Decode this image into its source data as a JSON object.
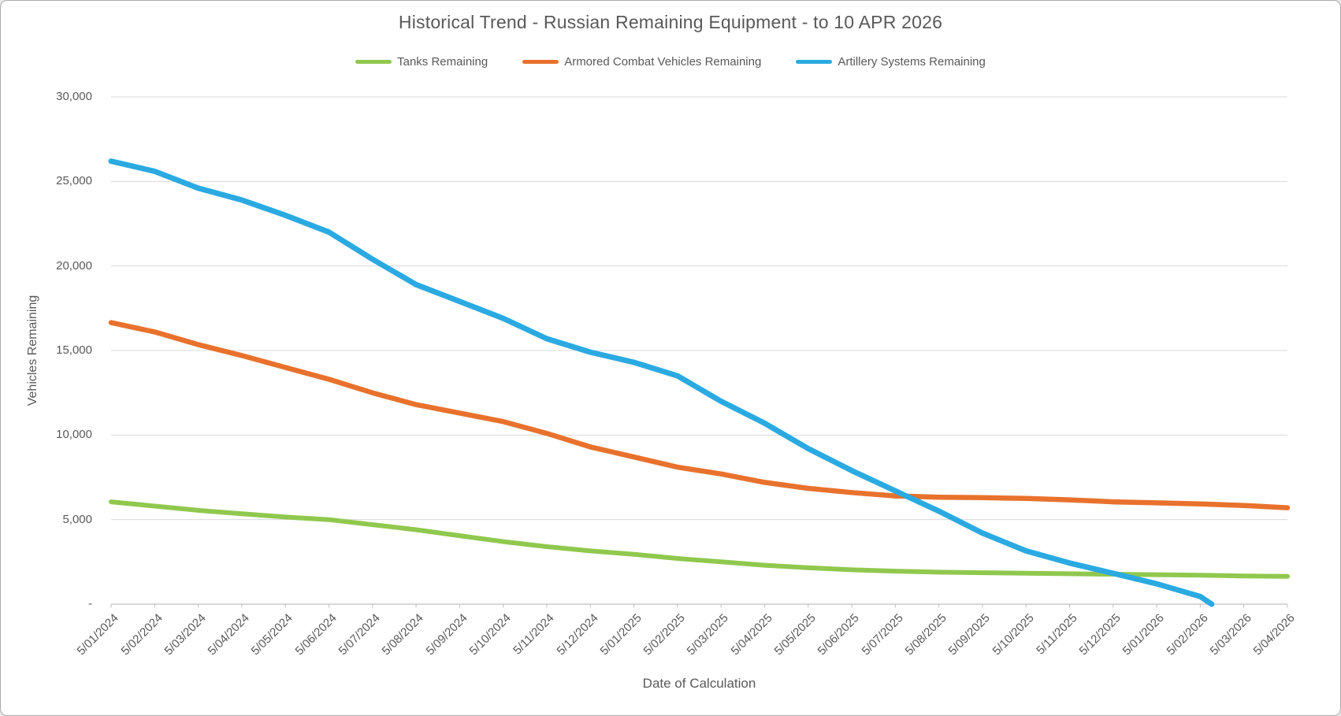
{
  "chart_data": {
    "type": "line",
    "title": "Historical Trend - Russian Remaining Equipment - to 10 APR 2026",
    "xlabel": "Date of Calculation",
    "ylabel": "Vehicles Remaining",
    "ylim": [
      0,
      30000
    ],
    "y_tick_step": 5000,
    "y_tick_labels": [
      "-",
      "5,000",
      "10,000",
      "15,000",
      "20,000",
      "25,000",
      "30,000"
    ],
    "grid": "horizontal",
    "legend_position": "top",
    "categories": [
      "5/01/2024",
      "5/02/2024",
      "5/03/2024",
      "5/04/2024",
      "5/05/2024",
      "5/06/2024",
      "5/07/2024",
      "5/08/2024",
      "5/09/2024",
      "5/10/2024",
      "5/11/2024",
      "5/12/2024",
      "5/01/2025",
      "5/02/2025",
      "5/03/2025",
      "5/04/2025",
      "5/05/2025",
      "5/06/2025",
      "5/07/2025",
      "5/08/2025",
      "5/09/2025",
      "5/10/2025",
      "5/11/2025",
      "5/12/2025",
      "5/01/2026",
      "5/02/2026",
      "5/03/2026",
      "5/04/2026"
    ],
    "series": [
      {
        "name": "Tanks Remaining",
        "color": "#90C84E",
        "values": [
          6050,
          5800,
          5550,
          5350,
          5150,
          5000,
          4700,
          4400,
          4050,
          3700,
          3400,
          3150,
          2950,
          2700,
          2500,
          2300,
          2150,
          2030,
          1950,
          1890,
          1860,
          1830,
          1800,
          1770,
          1740,
          1710,
          1670,
          1640
        ]
      },
      {
        "name": "Armored Combat Vehicles Remaining",
        "color": "#E8722D",
        "values": [
          16650,
          16100,
          15350,
          14700,
          14000,
          13300,
          12500,
          11800,
          11300,
          10800,
          10100,
          9300,
          8700,
          8100,
          7700,
          7200,
          6850,
          6600,
          6400,
          6320,
          6300,
          6250,
          6170,
          6050,
          5990,
          5930,
          5830,
          5700
        ]
      },
      {
        "name": "Artillery Systems Remaining",
        "color": "#2BAAE2",
        "values": [
          26200,
          25600,
          24600,
          23900,
          23000,
          22000,
          20400,
          18900,
          17900,
          16900,
          15700,
          14900,
          14300,
          13500,
          12000,
          10700,
          9200,
          7900,
          6700,
          5500,
          4200,
          3150,
          2430,
          1820,
          1200,
          450,
          null,
          null
        ],
        "line_ends_at_zero": true,
        "zero_cross_fraction_after_last_point": 0.26
      }
    ],
    "colors": {
      "gridline": "#D9D9D9",
      "axis_line": "#BFBFBF",
      "tick_mark": "#BFBFBF",
      "text": "#595959",
      "background": "#FFFFFF"
    }
  }
}
